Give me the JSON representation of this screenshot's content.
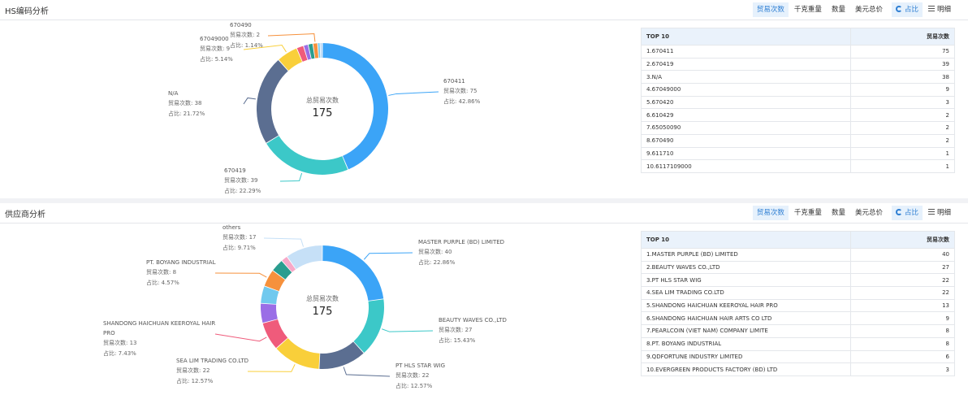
{
  "toolbar": {
    "btn_trade_count": "贸易次数",
    "btn_weight": "千克重量",
    "btn_quantity": "数量",
    "btn_usd_total": "美元总价",
    "btn_ratio": "占比",
    "btn_detail": "明细"
  },
  "hs": {
    "title": "HS编码分析",
    "center_label": "总贸易次数",
    "center_value": "175",
    "table": {
      "col1": "TOP 10",
      "col2": "贸易次数",
      "rows": [
        {
          "name": "1.670411",
          "value": "75"
        },
        {
          "name": "2.670419",
          "value": "39"
        },
        {
          "name": "3.N/A",
          "value": "38"
        },
        {
          "name": "4.67049000",
          "value": "9"
        },
        {
          "name": "5.670420",
          "value": "3"
        },
        {
          "name": "6.610429",
          "value": "2"
        },
        {
          "name": "7.65050090",
          "value": "2"
        },
        {
          "name": "8.670490",
          "value": "2"
        },
        {
          "name": "9.611710",
          "value": "1"
        },
        {
          "name": "10.6117109000",
          "value": "1"
        }
      ]
    }
  },
  "supplier": {
    "title": "供应商分析",
    "center_label": "总贸易次数",
    "center_value": "175",
    "table": {
      "col1": "TOP 10",
      "col2": "贸易次数",
      "rows": [
        {
          "name": "1.MASTER PURPLE (BD) LIMITED",
          "value": "40"
        },
        {
          "name": "2.BEAUTY WAVES CO.,LTD",
          "value": "27"
        },
        {
          "name": "3.PT HLS STAR WIG",
          "value": "22"
        },
        {
          "name": "4.SEA LIM TRADING CO.LTD",
          "value": "22"
        },
        {
          "name": "5.SHANDONG HAICHUAN KEEROYAL HAIR PRO",
          "value": "13"
        },
        {
          "name": "6.SHANDONG HAICHUAN HAIR ARTS CO LTD",
          "value": "9"
        },
        {
          "name": "7.PEARLCOIN (VIET NAM) COMPANY LIMITE",
          "value": "8"
        },
        {
          "name": "8.PT. BOYANG INDUSTRIAL",
          "value": "8"
        },
        {
          "name": "9.QDFORTUNE INDUSTRY LIMITED",
          "value": "6"
        },
        {
          "name": "10.EVERGREEN PRODUCTS FACTORY (BD) LTD",
          "value": "3"
        }
      ]
    }
  },
  "chart_data": [
    {
      "type": "pie",
      "donut": true,
      "center_label": "总贸易次数",
      "center_value": 175,
      "slices": [
        {
          "name": "670411",
          "value": 75,
          "ratio": "42.86%",
          "color": "#3ba4f7",
          "labeled": true,
          "side": "right"
        },
        {
          "name": "670419",
          "value": 39,
          "ratio": "22.29%",
          "color": "#3cc8c8",
          "labeled": true,
          "side": "left"
        },
        {
          "name": "N/A",
          "value": 38,
          "ratio": "21.72%",
          "color": "#5b6e91",
          "labeled": true,
          "side": "left"
        },
        {
          "name": "67049000",
          "value": 9,
          "ratio": "5.14%",
          "color": "#f9cf3a",
          "labeled": true,
          "side": "left"
        },
        {
          "name": "670420",
          "value": 3,
          "ratio": "",
          "color": "#ef5b7b",
          "labeled": false
        },
        {
          "name": "610429",
          "value": 2,
          "ratio": "",
          "color": "#9a6ee6",
          "labeled": false
        },
        {
          "name": "65050090",
          "value": 2,
          "ratio": "",
          "color": "#2a9d8f",
          "labeled": false
        },
        {
          "name": "670490",
          "value": 2,
          "ratio": "1.14%",
          "color": "#f6913c",
          "labeled": true,
          "side": "left"
        },
        {
          "name": "611710",
          "value": 1,
          "ratio": "",
          "color": "#71c9ee",
          "labeled": false
        },
        {
          "name": "6117109000",
          "value": 1,
          "ratio": "",
          "color": "#b7d6f5",
          "labeled": false
        }
      ]
    },
    {
      "type": "pie",
      "donut": true,
      "center_label": "总贸易次数",
      "center_value": 175,
      "slices": [
        {
          "name": "MASTER PURPLE (BD) LIMITED",
          "value": 40,
          "ratio": "22.86%",
          "color": "#3ba4f7",
          "labeled": true,
          "side": "right"
        },
        {
          "name": "BEAUTY WAVES CO.,LTD",
          "value": 27,
          "ratio": "15.43%",
          "color": "#3cc8c8",
          "labeled": true,
          "side": "right"
        },
        {
          "name": "PT HLS STAR WIG",
          "value": 22,
          "ratio": "12.57%",
          "color": "#5b6e91",
          "labeled": true,
          "side": "right"
        },
        {
          "name": "SEA LIM TRADING CO.LTD",
          "value": 22,
          "ratio": "12.57%",
          "color": "#f9cf3a",
          "labeled": true,
          "side": "left"
        },
        {
          "name": "SHANDONG HAICHUAN KEEROYAL HAIR PRO",
          "value": 13,
          "ratio": "7.43%",
          "color": "#ef5b7b",
          "labeled": true,
          "side": "left"
        },
        {
          "name": "SHANDONG HAICHUAN HAIR ARTS CO LTD",
          "value": 9,
          "ratio": "",
          "color": "#9a6ee6",
          "labeled": false
        },
        {
          "name": "PEARLCOIN (VIET NAM) COMPANY LIMITE",
          "value": 8,
          "ratio": "",
          "color": "#71c9ee",
          "labeled": false
        },
        {
          "name": "PT. BOYANG INDUSTRIAL",
          "value": 8,
          "ratio": "4.57%",
          "color": "#f6913c",
          "labeled": true,
          "side": "left"
        },
        {
          "name": "QDFORTUNE INDUSTRY LIMITED",
          "value": 6,
          "ratio": "",
          "color": "#2a9d8f",
          "labeled": false
        },
        {
          "name": "EVERGREEN PRODUCTS FACTORY (BD) LTD",
          "value": 3,
          "ratio": "",
          "color": "#f7a8c8",
          "labeled": false
        },
        {
          "name": "others",
          "value": 17,
          "ratio": "9.71%",
          "color": "#c6e0f7",
          "labeled": true,
          "side": "left"
        }
      ]
    }
  ],
  "label_prefix": {
    "count": "贸易次数: ",
    "ratio": "占比: "
  }
}
